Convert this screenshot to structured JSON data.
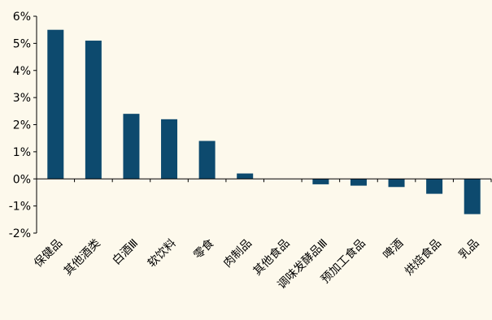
{
  "chart_data": {
    "type": "bar",
    "categories": [
      "保健品",
      "其他酒类",
      "白酒Ⅲ",
      "软饮料",
      "零食",
      "肉制品",
      "其他食品",
      "调味发酵品Ⅲ",
      "预加工食品",
      "啤酒",
      "烘焙食品",
      "乳品"
    ],
    "values": [
      5.5,
      5.1,
      2.4,
      2.2,
      1.4,
      0.2,
      0.0,
      -0.2,
      -0.25,
      -0.3,
      -0.55,
      -1.3
    ],
    "y_ticks": [
      "-2%",
      "-1%",
      "0%",
      "1%",
      "2%",
      "3%",
      "4%",
      "5%",
      "6%"
    ],
    "ylim": [
      -2,
      6
    ],
    "title": "",
    "xlabel": "",
    "ylabel": "",
    "grid": false,
    "colors": {
      "bar": "#0d4a6e",
      "axis": "#000000",
      "background": "#fdf9ec"
    }
  }
}
